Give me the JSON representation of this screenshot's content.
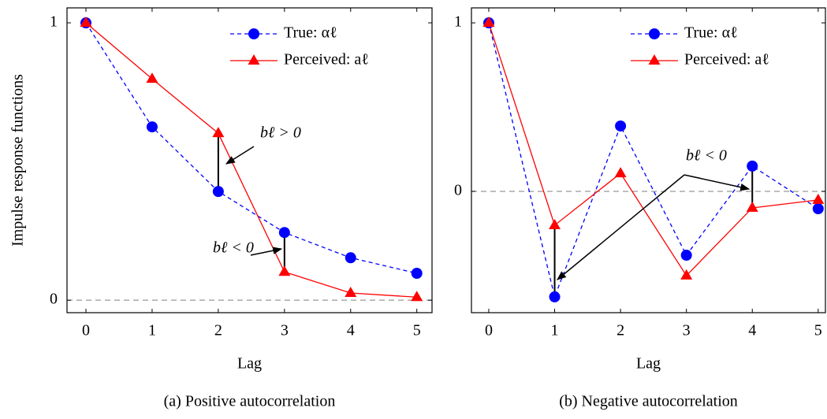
{
  "chart_data": [
    {
      "type": "line",
      "xlabel": "Lag",
      "ylabel": "Impulse response functions",
      "caption": "(a) Positive autocorrelation",
      "x": [
        0,
        1,
        2,
        3,
        4,
        5
      ],
      "series": [
        {
          "name": "True: αℓ",
          "color": "#0000ff",
          "linestyle": "dashed",
          "marker": "circle",
          "values": [
            1,
            0.625,
            0.392,
            0.244,
            0.153,
            0.097
          ]
        },
        {
          "name": "Perceived: aℓ",
          "color": "#ff0000",
          "linestyle": "solid",
          "marker": "triangle",
          "values": [
            1,
            0.798,
            0.602,
            0.102,
            0.026,
            0.011
          ]
        }
      ],
      "annotations": [
        "bℓ > 0",
        "bℓ < 0"
      ],
      "xlim": [
        -0.286,
        5.23
      ],
      "ylim": [
        -0.045,
        1.054
      ],
      "xticks": [
        0,
        1,
        2,
        3,
        4,
        5
      ],
      "yticks": [
        0,
        1
      ],
      "legend": "upper right"
    },
    {
      "type": "line",
      "xlabel": "Lag",
      "caption": "(b) Negative autocorrelation",
      "x": [
        0,
        1,
        2,
        3,
        4,
        5
      ],
      "series": [
        {
          "name": "True: αℓ",
          "color": "#0000ff",
          "linestyle": "dashed",
          "marker": "circle",
          "values": [
            1,
            -0.626,
            0.388,
            -0.379,
            0.15,
            -0.103
          ]
        },
        {
          "name": "Perceived: aℓ",
          "color": "#ff0000",
          "linestyle": "solid",
          "marker": "triangle",
          "values": [
            1,
            -0.201,
            0.107,
            -0.5,
            -0.098,
            -0.051
          ]
        }
      ],
      "annotations": [
        "bℓ < 0"
      ],
      "xlim": [
        -0.263,
        5.11
      ],
      "ylim": [
        -0.72,
        1.089
      ],
      "xticks": [
        0,
        1,
        2,
        3,
        4,
        5
      ],
      "yticks": [
        0,
        1
      ],
      "legend": "upper right"
    }
  ]
}
